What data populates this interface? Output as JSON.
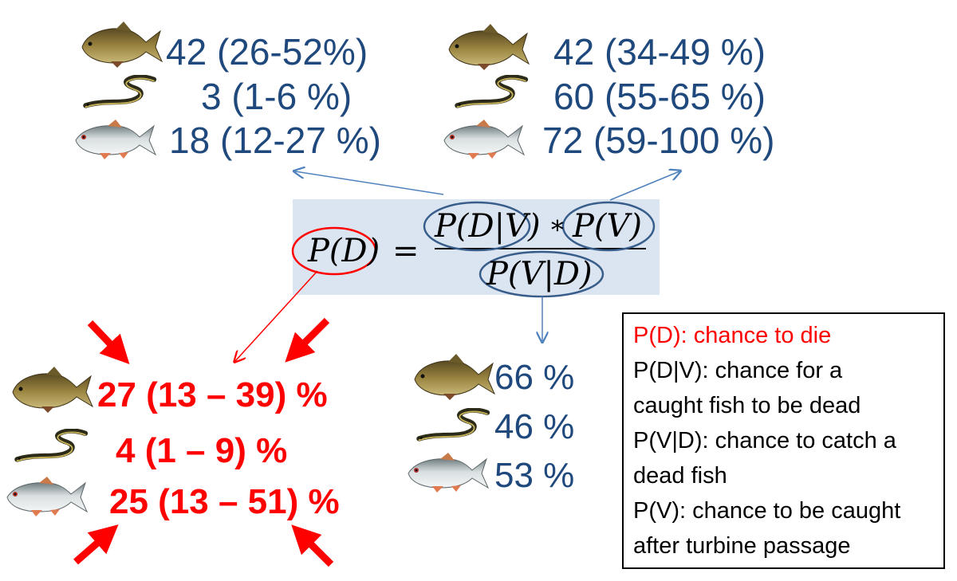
{
  "top_left": [
    {
      "fish": "bream-icon",
      "text": "42  (26-52%)"
    },
    {
      "fish": "eel-icon",
      "text": "3  (1-6 %)"
    },
    {
      "fish": "roach-icon",
      "text": "18 (12-27 %)"
    }
  ],
  "top_right": [
    {
      "fish": "bream-icon",
      "text": "42 (34-49 %)"
    },
    {
      "fish": "eel-icon",
      "text": "60 (55-65 %)"
    },
    {
      "fish": "roach-icon",
      "text": "72 (59-100 %)"
    }
  ],
  "formula": {
    "lhs": "P(D)",
    "equals": "=",
    "num_a": "P(D|V)",
    "times": "∗",
    "num_b": "P(V)",
    "denominator": "P(V|D)"
  },
  "bottom_left": [
    {
      "fish": "bream-icon",
      "text": "27 (13 – 39) %"
    },
    {
      "fish": "eel-icon",
      "text": "4 (1 – 9) %"
    },
    {
      "fish": "roach-icon",
      "text": "25 (13 – 51) %"
    }
  ],
  "bottom_mid": [
    {
      "fish": "bream-icon",
      "text": "66 %"
    },
    {
      "fish": "eel-icon",
      "text": "46 %"
    },
    {
      "fish": "roach-icon",
      "text": "53 %"
    }
  ],
  "legend": [
    "P(D): chance to die",
    "P(D|V): chance for a",
    "caught fish to be dead",
    "P(V|D): chance to catch a",
    "dead fish",
    "P(V): chance to be caught",
    "after turbine passage"
  ],
  "colors": {
    "blue_text": "#1F497D",
    "red_text": "#FF0000",
    "formula_bg": "#DBE5F1",
    "ellipse_blue": "#385D8A",
    "arrow_blue": "#4F81BD"
  }
}
